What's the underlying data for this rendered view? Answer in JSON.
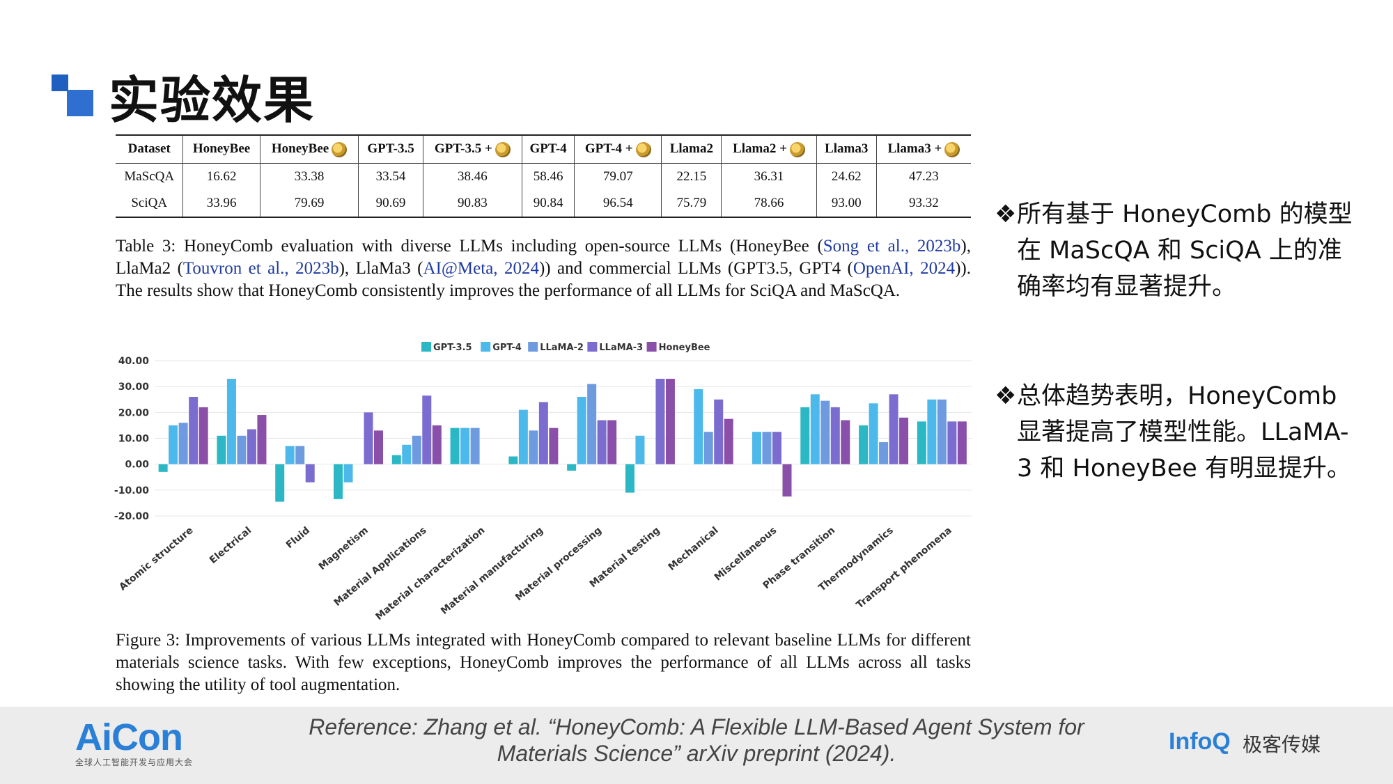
{
  "header": {
    "title": "实验效果"
  },
  "table": {
    "headers": [
      "Dataset",
      "HoneyBee",
      "HoneyBee",
      "GPT-3.5",
      "GPT-3.5 +",
      "GPT-4",
      "GPT-4 +",
      "Llama2",
      "Llama2 +",
      "Llama3",
      "Llama3 +"
    ],
    "rows": [
      [
        "MaScQA",
        "16.62",
        "33.38",
        "33.54",
        "38.46",
        "58.46",
        "79.07",
        "22.15",
        "36.31",
        "24.62",
        "47.23"
      ],
      [
        "SciQA",
        "33.96",
        "79.69",
        "90.69",
        "90.83",
        "90.84",
        "96.54",
        "75.79",
        "78.66",
        "93.00",
        "93.32"
      ]
    ]
  },
  "caption1": {
    "prefix": "Table 3: HoneyComb evaluation with diverse LLMs including open-source LLMs (HoneyBee (",
    "ref1": "Song et al., 2023b",
    "mid1": "), LlaMa2 (",
    "ref2": "Touvron et al., 2023b",
    "mid2": "), LlaMa3 (",
    "ref3": "AI@Meta, 2024",
    "mid3": ")) and commercial LLMs (GPT3.5, GPT4 (",
    "ref4": "OpenAI, 2024",
    "suffix": ")). The results show that HoneyComb consistently improves the performance of all LLMs for SciQA and MaScQA."
  },
  "chart_data": {
    "type": "bar",
    "categories": [
      "Atomic structure",
      "Electrical",
      "Fluid",
      "Magnetism",
      "Material Applications",
      "Material characterization",
      "Material manufacturing",
      "Material processing",
      "Material testing",
      "Mechanical",
      "Miscellaneous",
      "Phase transition",
      "Thermodynamics",
      "Transport phenomena"
    ],
    "series": [
      {
        "name": "GPT-3.5",
        "color": "#2bb8c4",
        "values": [
          -3,
          11,
          -14.5,
          -13.5,
          3.5,
          14,
          3,
          -2.5,
          -11,
          0,
          0,
          22,
          15,
          16.5
        ]
      },
      {
        "name": "GPT-4",
        "color": "#4db8ea",
        "values": [
          15,
          33,
          7,
          -7,
          7.5,
          14,
          21,
          26,
          11,
          29,
          12.5,
          27,
          23.5,
          25
        ]
      },
      {
        "name": "LLaMA-2",
        "color": "#6e9ae0",
        "values": [
          16,
          11,
          7,
          0,
          11,
          14,
          13,
          31,
          0,
          12.5,
          12.5,
          24.5,
          8.5,
          25
        ]
      },
      {
        "name": "LLaMA-3",
        "color": "#7b6cd0",
        "values": [
          26,
          13.5,
          -7,
          20,
          26.5,
          0,
          24,
          17,
          33,
          25,
          12.5,
          22,
          27,
          16.5
        ]
      },
      {
        "name": "HoneyBee",
        "color": "#8a4fa8",
        "values": [
          22,
          19,
          0,
          13,
          15,
          0,
          14,
          17,
          33,
          17.5,
          -12.5,
          17,
          18,
          16.5
        ]
      }
    ],
    "yticks": [
      "40.00",
      "30.00",
      "20.00",
      "10.00",
      "0.00",
      "-10.00",
      "-20.00"
    ],
    "ylim": [
      -20,
      40
    ],
    "legend_position": "top-center",
    "grid": true
  },
  "caption2": {
    "text": "Figure 3: Improvements of various LLMs integrated with HoneyComb compared to relevant baseline LLMs for different materials science tasks. With few exceptions, HoneyComb improves the performance of all LLMs across all tasks showing the utility of tool augmentation."
  },
  "bullets": [
    {
      "marker": "❖",
      "text": "所有基于 HoneyComb 的模型在 MaScQA 和 SciQA 上的准确率均有显著提升。"
    },
    {
      "marker": "❖",
      "text": "总体趋势表明，HoneyComb 显著提高了模型性能。LLaMA-3 和 HoneyBee 有明显提升。"
    }
  ],
  "footer": {
    "brand": "AiCon",
    "brand_sub": "全球人工智能开发与应用大会",
    "reference": "Reference: Zhang et al. “HoneyComb: A Flexible LLM-Based Agent System for Materials Science” arXiv preprint (2024).",
    "partner": "InfoQ",
    "partner_cn": "极客传媒"
  }
}
